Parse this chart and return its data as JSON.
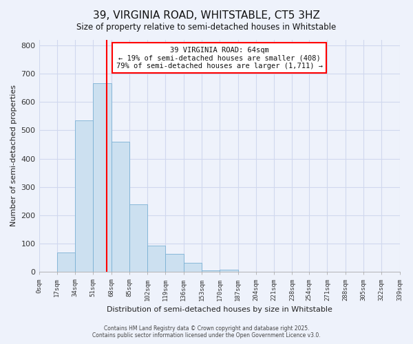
{
  "title": "39, VIRGINIA ROAD, WHITSTABLE, CT5 3HZ",
  "subtitle": "Size of property relative to semi-detached houses in Whitstable",
  "xlabel": "Distribution of semi-detached houses by size in Whitstable",
  "ylabel": "Number of semi-detached properties",
  "bin_edges": [
    0,
    17,
    34,
    51,
    68,
    85,
    102,
    119,
    136,
    153,
    170,
    187,
    204,
    221,
    238,
    254,
    271,
    288,
    305,
    322,
    339
  ],
  "bin_counts": [
    2,
    70,
    535,
    665,
    460,
    238,
    93,
    65,
    33,
    5,
    8,
    2,
    0,
    0,
    0,
    0,
    0,
    0,
    0,
    0
  ],
  "bar_color": "#cce0f0",
  "bar_edgecolor": "#7ab0d4",
  "vline_x": 64,
  "vline_color": "red",
  "annotation_line1": "39 VIRGINIA ROAD: 64sqm",
  "annotation_line2": "← 19% of semi-detached houses are smaller (408)",
  "annotation_line3": "79% of semi-detached houses are larger (1,711) →",
  "annotation_box_edgecolor": "red",
  "annotation_box_facecolor": "white",
  "ylim": [
    0,
    820
  ],
  "yticks": [
    0,
    100,
    200,
    300,
    400,
    500,
    600,
    700,
    800
  ],
  "tick_labels": [
    "0sqm",
    "17sqm",
    "34sqm",
    "51sqm",
    "68sqm",
    "85sqm",
    "102sqm",
    "119sqm",
    "136sqm",
    "153sqm",
    "170sqm",
    "187sqm",
    "204sqm",
    "221sqm",
    "238sqm",
    "254sqm",
    "271sqm",
    "288sqm",
    "305sqm",
    "322sqm",
    "339sqm"
  ],
  "footer_line1": "Contains HM Land Registry data © Crown copyright and database right 2025.",
  "footer_line2": "Contains public sector information licensed under the Open Government Licence v3.0.",
  "background_color": "#eef2fb",
  "grid_color": "#d0d8ee"
}
